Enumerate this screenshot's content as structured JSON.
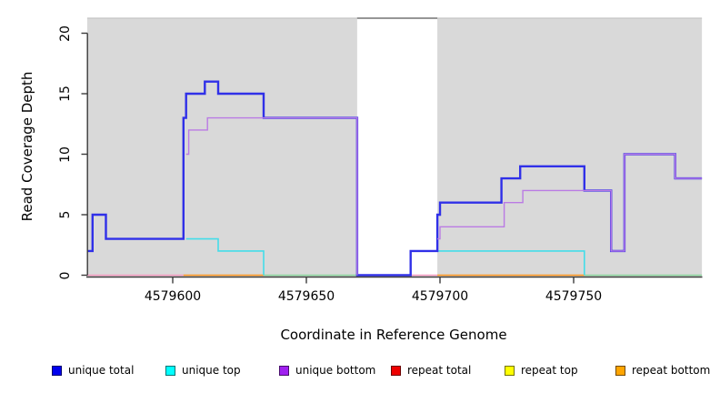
{
  "figure": {
    "background": "#ffffff",
    "plot_band_color": "#d9d9d9",
    "axis_color": "#3a3a3a",
    "gap_top_line_color": "#8a8a8a",
    "band_top_edge_color": "#c4c4c4"
  },
  "chart_data": {
    "type": "line",
    "subtype": "step-coverage",
    "title": "",
    "xlabel": "Coordinate in Reference Genome",
    "ylabel": "Read Coverage Depth",
    "xlim": [
      4579568,
      4579798
    ],
    "ylim": [
      0,
      21.3
    ],
    "grid": false,
    "x_ticks": [
      4579600,
      4579650,
      4579700,
      4579750
    ],
    "x_tick_labels": [
      "4579600",
      "4579650",
      "4579700",
      "4579750"
    ],
    "y_ticks": [
      0,
      5,
      10,
      15,
      20
    ],
    "y_tick_labels": [
      "0",
      "5",
      "10",
      "15",
      "20"
    ],
    "background_bands": [
      {
        "name": "gray-band-left",
        "from": 4579568,
        "to": 4579669
      },
      {
        "name": "gray-band-right",
        "from": 4579699,
        "to": 4579798
      }
    ],
    "gap_region": {
      "from": 4579669,
      "to": 4579699
    },
    "series": [
      {
        "name": "repeat total",
        "render_color": "#f59bc2",
        "width": 1.6,
        "parts": [
          {
            "points": [
              [
                4579568,
                0
              ]
            ],
            "end": 4579604
          },
          {
            "points": [
              [
                4579689,
                0
              ]
            ],
            "end": 4579699
          }
        ]
      },
      {
        "name": "repeat top",
        "render_color": "#8cd69e",
        "width": 1.6,
        "parts": [
          {
            "points": [
              [
                4579634,
                0
              ]
            ],
            "end": 4579669
          },
          {
            "points": [
              [
                4579754,
                0
              ]
            ],
            "end": 4579798
          }
        ]
      },
      {
        "name": "repeat bottom",
        "render_color": "#ff9820",
        "width": 1.6,
        "parts": [
          {
            "points": [
              [
                4579604,
                0
              ]
            ],
            "end": 4579634
          },
          {
            "points": [
              [
                4579699,
                0
              ]
            ],
            "end": 4579754
          }
        ]
      },
      {
        "name": "unique top",
        "render_color": "#44dde9",
        "width": 1.6,
        "parts": [
          {
            "points": [
              [
                4579605,
                3
              ],
              [
                4579617,
                2
              ],
              [
                4579634,
                0
              ]
            ],
            "end": 4579634
          },
          {
            "points": [
              [
                4579699,
                2
              ],
              [
                4579754,
                0
              ]
            ],
            "end": 4579754
          }
        ]
      },
      {
        "name": "unique total",
        "render_color": "#3030e8",
        "width": 2.4,
        "parts": [
          {
            "points": [
              [
                4579568,
                2
              ],
              [
                4579570,
                5
              ],
              [
                4579575,
                3
              ],
              [
                4579604,
                13
              ],
              [
                4579605,
                15
              ],
              [
                4579612,
                16
              ],
              [
                4579617,
                15
              ],
              [
                4579634,
                13
              ],
              [
                4579669,
                0
              ],
              [
                4579689,
                2
              ],
              [
                4579699,
                5
              ],
              [
                4579700,
                6
              ],
              [
                4579723,
                8
              ],
              [
                4579730,
                9
              ],
              [
                4579754,
                7
              ],
              [
                4579764,
                2
              ],
              [
                4579769,
                10
              ],
              [
                4579788,
                8
              ]
            ],
            "end": 4579798
          }
        ]
      },
      {
        "name": "unique bottom",
        "render_color": "#ba7be4",
        "width": 1.4,
        "parts": [
          {
            "points": [
              [
                4579605,
                10
              ],
              [
                4579606,
                12
              ],
              [
                4579613,
                13
              ],
              [
                4579669,
                0
              ]
            ],
            "end": 4579669
          },
          {
            "points": [
              [
                4579699,
                3
              ],
              [
                4579700,
                4
              ],
              [
                4579724,
                6
              ],
              [
                4579731,
                7
              ],
              [
                4579764,
                2
              ],
              [
                4579769,
                10
              ],
              [
                4579788,
                8
              ]
            ],
            "end": 4579798
          }
        ]
      }
    ]
  },
  "legend": [
    {
      "label": "unique total",
      "color": "#0000ee"
    },
    {
      "label": "unique top",
      "color": "#00ffff"
    },
    {
      "label": "unique bottom",
      "color": "#a020f0"
    },
    {
      "label": "repeat total",
      "color": "#ee0000"
    },
    {
      "label": "repeat top",
      "color": "#ffff00"
    },
    {
      "label": "repeat bottom",
      "color": "#ffa500"
    }
  ]
}
